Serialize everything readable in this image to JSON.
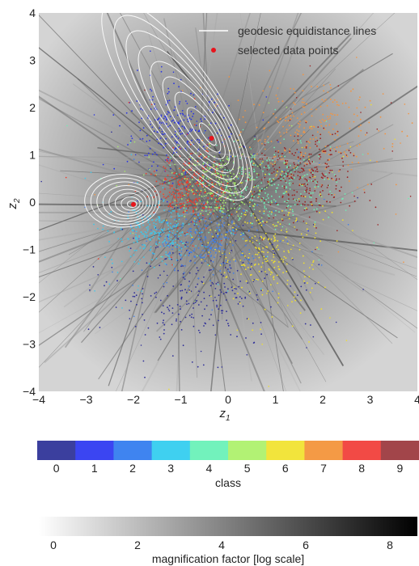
{
  "chart_data": [
    {
      "type": "scatter",
      "title": "",
      "xlabel": "z",
      "xlabel_sub": "1",
      "ylabel": "z",
      "ylabel_sub": "2",
      "xlim": [
        -4,
        4
      ],
      "ylim": [
        -4,
        4
      ],
      "xticks": [
        "−4",
        "−3",
        "−2",
        "−1",
        "0",
        "1",
        "2",
        "3",
        "4"
      ],
      "yticks": [
        "−4",
        "−3",
        "−2",
        "−1",
        "0",
        "1",
        "2",
        "3",
        "4"
      ],
      "grid": false,
      "background": "grayscale magnification factor field",
      "legend": {
        "placement": "top-right",
        "entries": [
          {
            "name": "geodesic equidistance lines",
            "marker": "line",
            "color": "#ffffff"
          },
          {
            "name": "selected data points",
            "marker": "dot",
            "color": "#e8141c"
          }
        ]
      },
      "selected_points": [
        {
          "x": -0.35,
          "y": 1.35
        },
        {
          "x": -2.0,
          "y": -0.05
        }
      ],
      "clusters": [
        {
          "class": 0,
          "color": "#2f2f99",
          "center": [
            -0.7,
            -1.9
          ],
          "spread": [
            0.9,
            0.6
          ]
        },
        {
          "class": 1,
          "color": "#2a34e0",
          "center": [
            -1.1,
            1.5
          ],
          "spread": [
            0.55,
            0.45
          ]
        },
        {
          "class": 2,
          "color": "#3f7ee8",
          "center": [
            -0.4,
            -0.8
          ],
          "spread": [
            0.55,
            0.35
          ]
        },
        {
          "class": 3,
          "color": "#3cc7ea",
          "center": [
            -1.5,
            -0.7
          ],
          "spread": [
            0.45,
            0.3
          ]
        },
        {
          "class": 4,
          "color": "#6ef0b4",
          "center": [
            0.9,
            0.3
          ],
          "spread": [
            0.7,
            0.4
          ]
        },
        {
          "class": 5,
          "color": "#a9ec6a",
          "center": [
            -0.3,
            0.4
          ],
          "spread": [
            0.45,
            0.35
          ]
        },
        {
          "class": 6,
          "color": "#f0e02c",
          "center": [
            0.9,
            -1.0
          ],
          "spread": [
            0.55,
            0.7
          ]
        },
        {
          "class": 7,
          "color": "#f39440",
          "center": [
            1.7,
            1.5
          ],
          "spread": [
            0.8,
            0.5
          ]
        },
        {
          "class": 8,
          "color": "#f03b2a",
          "center": [
            -0.75,
            0.35
          ],
          "spread": [
            0.35,
            0.35
          ]
        },
        {
          "class": 9,
          "color": "#9a2424",
          "center": [
            1.6,
            0.5
          ],
          "spread": [
            0.5,
            0.45
          ]
        }
      ]
    },
    {
      "type": "colorbar",
      "label": "class",
      "categories": [
        "0",
        "1",
        "2",
        "3",
        "4",
        "5",
        "6",
        "7",
        "8",
        "9"
      ],
      "colors": [
        "#3b3f9e",
        "#3b45f2",
        "#3f84f0",
        "#3fd0f0",
        "#72f2bc",
        "#b2f274",
        "#f2e43c",
        "#f49a45",
        "#f24a45",
        "#a2454a"
      ]
    },
    {
      "type": "colorbar",
      "label": "magnification factor [log scale]",
      "range": [
        0,
        9
      ],
      "ticks": [
        "0",
        "2",
        "4",
        "6",
        "8"
      ],
      "tick_values": [
        0,
        2,
        4,
        6,
        8
      ],
      "gradient": [
        "#ffffff",
        "#000000"
      ]
    }
  ]
}
